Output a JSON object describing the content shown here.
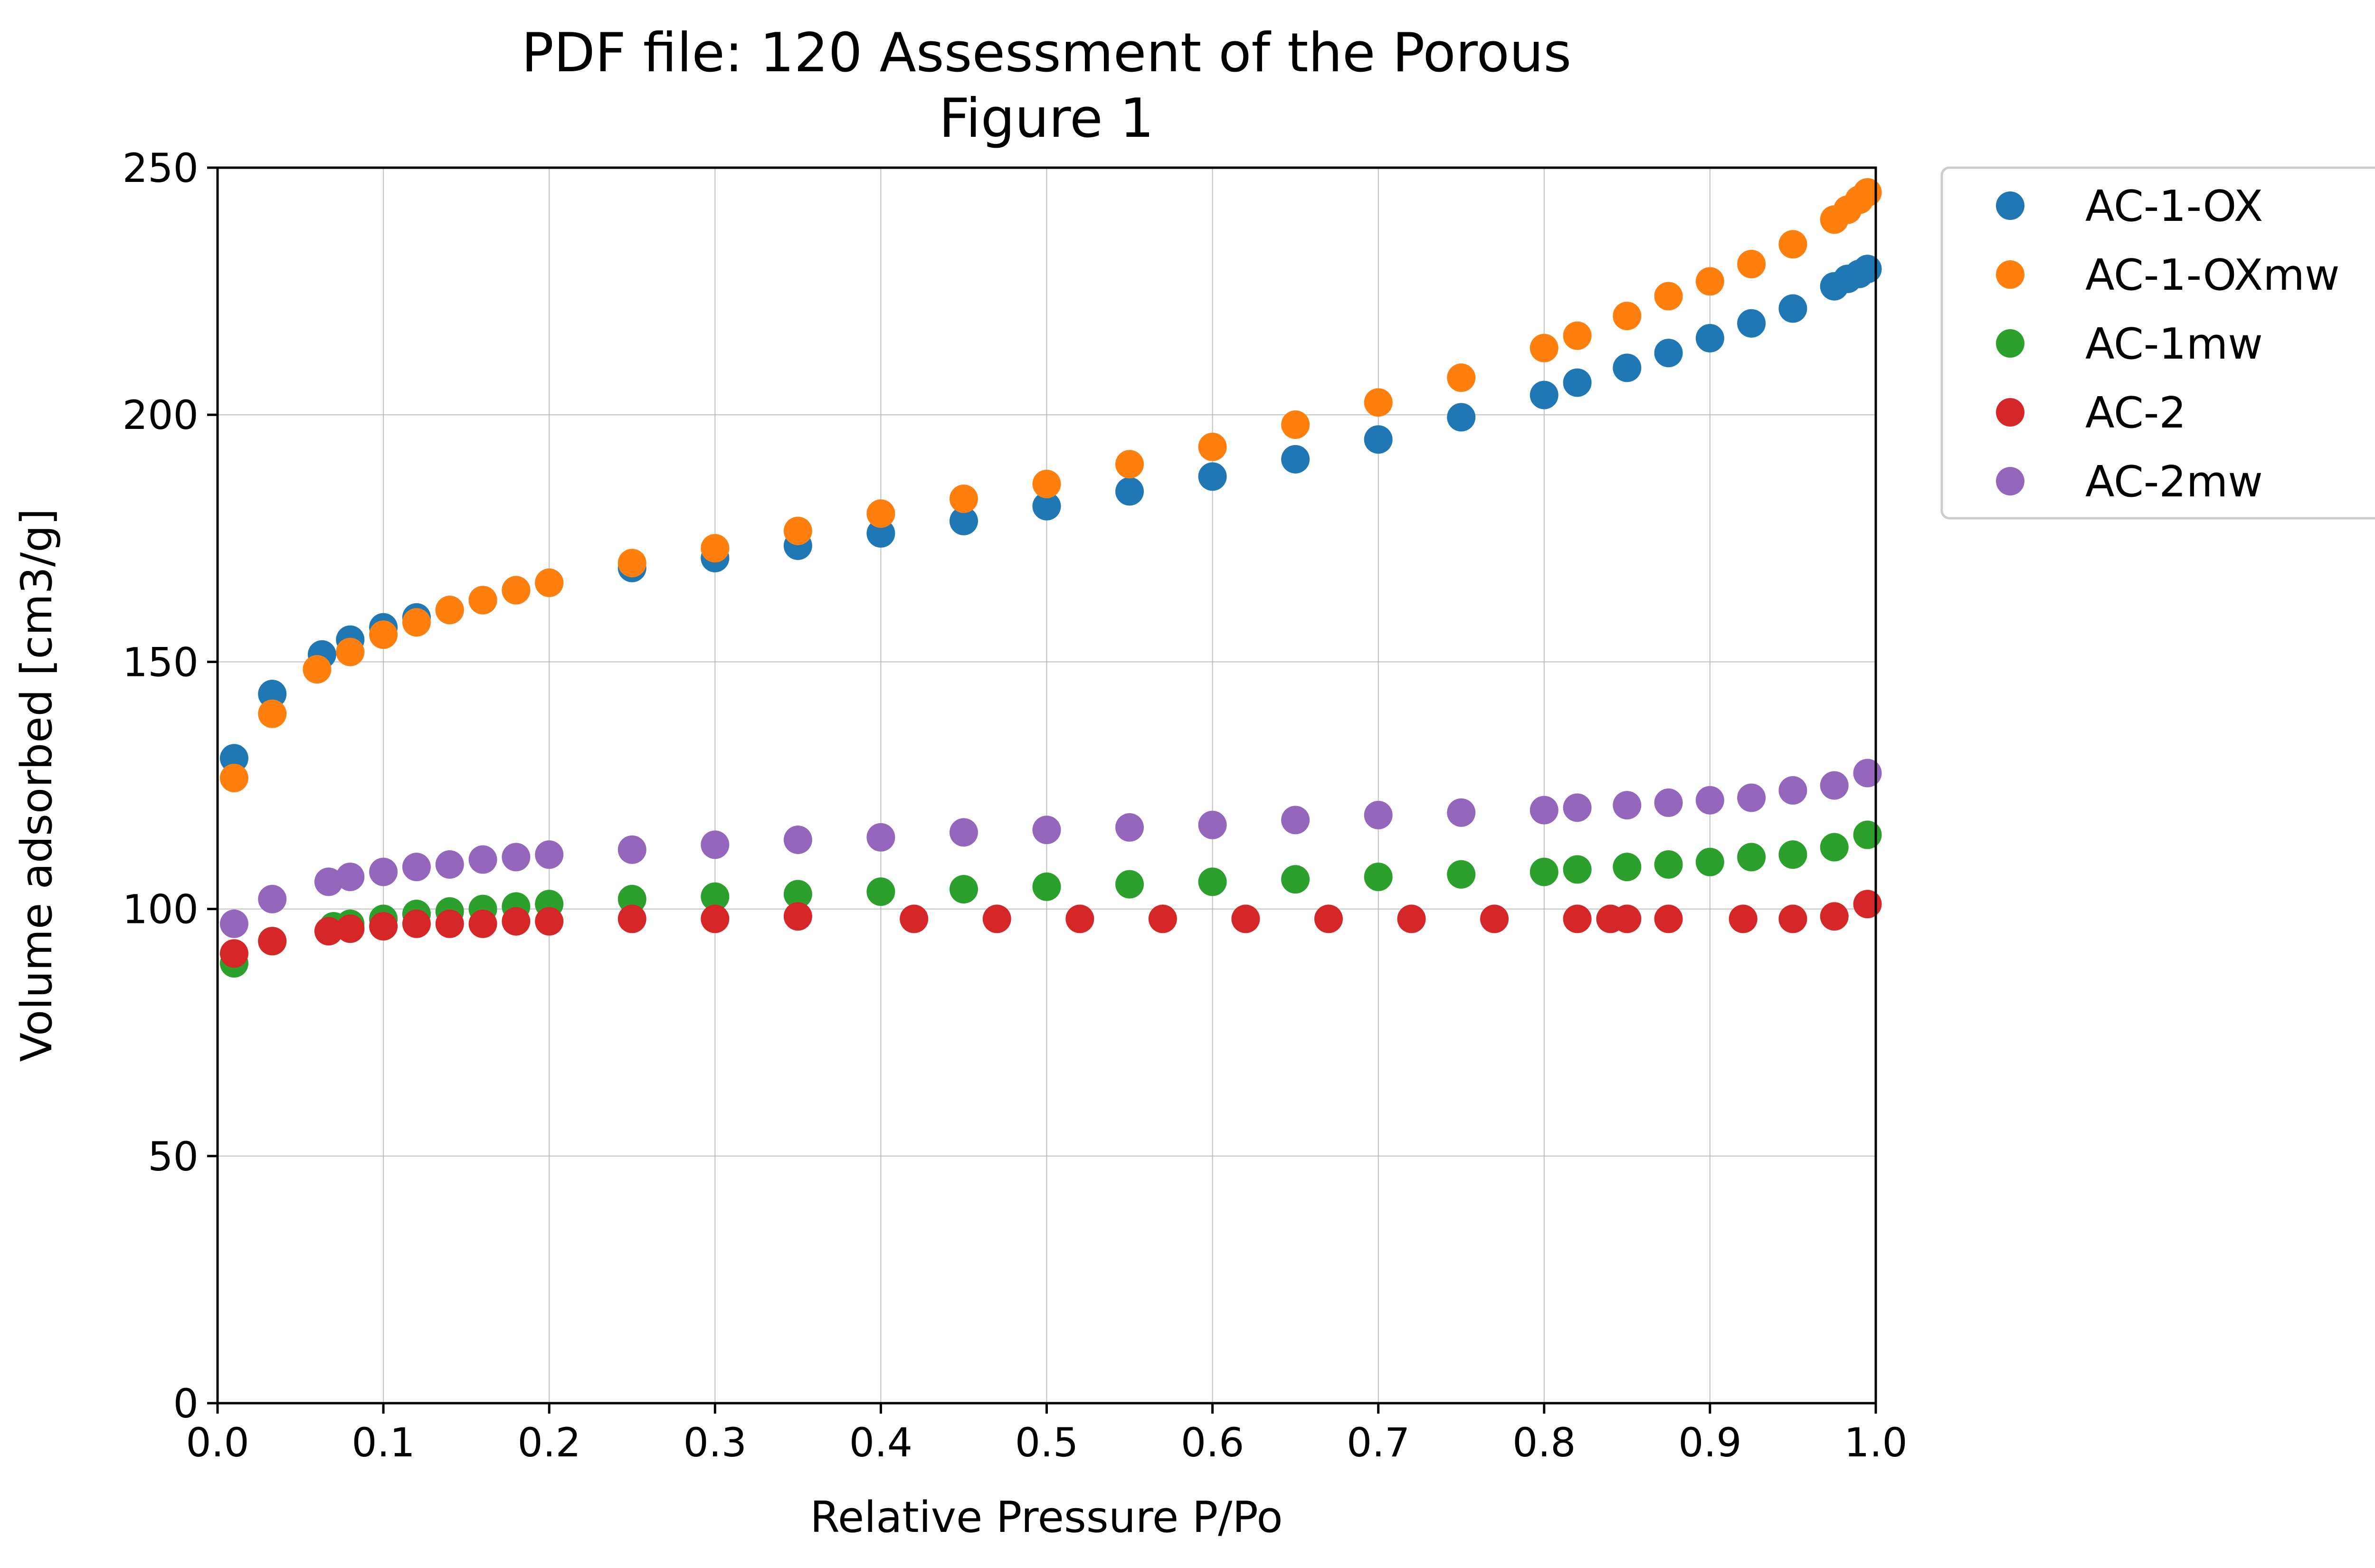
{
  "chart_data": {
    "type": "scatter",
    "title": "PDF file: 120 Assessment of the Porous",
    "subtitle": "Figure 1",
    "xlabel": "Relative Pressure P/Po",
    "ylabel": "Volume adsorbed [cm3/g]",
    "xlim": [
      0.0,
      1.0
    ],
    "ylim": [
      0,
      250
    ],
    "xticks": [
      "0.0",
      "0.1",
      "0.2",
      "0.3",
      "0.4",
      "0.5",
      "0.6",
      "0.7",
      "0.8",
      "0.9",
      "1.0"
    ],
    "yticks": [
      "0",
      "50",
      "100",
      "150",
      "200",
      "250"
    ],
    "grid": true,
    "legend_position": "outside-right",
    "series": [
      {
        "name": "AC-1-OX",
        "color": "#1f77b4",
        "points": [
          [
            0.01,
            130.5
          ],
          [
            0.033,
            143.5
          ],
          [
            0.063,
            151.5
          ],
          [
            0.08,
            154.5
          ],
          [
            0.1,
            157
          ],
          [
            0.12,
            159
          ],
          [
            0.14,
            160.5
          ],
          [
            0.16,
            162.5
          ],
          [
            0.18,
            164.5
          ],
          [
            0.2,
            166
          ],
          [
            0.25,
            169
          ],
          [
            0.3,
            171
          ],
          [
            0.35,
            173.5
          ],
          [
            0.4,
            176
          ],
          [
            0.45,
            178.5
          ],
          [
            0.5,
            181.5
          ],
          [
            0.55,
            184.5
          ],
          [
            0.6,
            187.5
          ],
          [
            0.65,
            191
          ],
          [
            0.7,
            195
          ],
          [
            0.75,
            199.5
          ],
          [
            0.8,
            204
          ],
          [
            0.82,
            206.5
          ],
          [
            0.85,
            209.5
          ],
          [
            0.875,
            212.5
          ],
          [
            0.9,
            215.5
          ],
          [
            0.925,
            218.5
          ],
          [
            0.95,
            221.5
          ],
          [
            0.975,
            226
          ],
          [
            0.983,
            227.5
          ],
          [
            0.99,
            228.5
          ],
          [
            0.995,
            229.5
          ]
        ]
      },
      {
        "name": "AC-1-OXmw",
        "color": "#ff7f0e",
        "points": [
          [
            0.01,
            126.5
          ],
          [
            0.033,
            139.5
          ],
          [
            0.06,
            148.5
          ],
          [
            0.08,
            152
          ],
          [
            0.1,
            155.5
          ],
          [
            0.12,
            158
          ],
          [
            0.14,
            160.5
          ],
          [
            0.16,
            162.5
          ],
          [
            0.18,
            164.5
          ],
          [
            0.2,
            166
          ],
          [
            0.25,
            170
          ],
          [
            0.3,
            173
          ],
          [
            0.35,
            176.5
          ],
          [
            0.4,
            180
          ],
          [
            0.45,
            183
          ],
          [
            0.5,
            186
          ],
          [
            0.55,
            190
          ],
          [
            0.6,
            193.5
          ],
          [
            0.65,
            198
          ],
          [
            0.7,
            202.5
          ],
          [
            0.75,
            207.5
          ],
          [
            0.8,
            213.5
          ],
          [
            0.82,
            216
          ],
          [
            0.85,
            220
          ],
          [
            0.875,
            224
          ],
          [
            0.9,
            227
          ],
          [
            0.925,
            230.5
          ],
          [
            0.95,
            234.5
          ],
          [
            0.975,
            239.5
          ],
          [
            0.983,
            241.5
          ],
          [
            0.99,
            243.5
          ],
          [
            0.995,
            245
          ]
        ]
      },
      {
        "name": "AC-1mw",
        "color": "#2ca02c",
        "points": [
          [
            0.01,
            89
          ],
          [
            0.033,
            93.5
          ],
          [
            0.07,
            96.5
          ],
          [
            0.08,
            97
          ],
          [
            0.1,
            98
          ],
          [
            0.12,
            99
          ],
          [
            0.14,
            99.5
          ],
          [
            0.16,
            100
          ],
          [
            0.18,
            100.5
          ],
          [
            0.2,
            101
          ],
          [
            0.25,
            102
          ],
          [
            0.3,
            102.5
          ],
          [
            0.35,
            103
          ],
          [
            0.4,
            103.5
          ],
          [
            0.45,
            104
          ],
          [
            0.5,
            104.5
          ],
          [
            0.55,
            105
          ],
          [
            0.6,
            105.5
          ],
          [
            0.65,
            106
          ],
          [
            0.7,
            106.5
          ],
          [
            0.75,
            107
          ],
          [
            0.8,
            107.5
          ],
          [
            0.82,
            108
          ],
          [
            0.85,
            108.5
          ],
          [
            0.875,
            109
          ],
          [
            0.9,
            109.5
          ],
          [
            0.925,
            110.5
          ],
          [
            0.95,
            111
          ],
          [
            0.975,
            112.5
          ],
          [
            0.995,
            115
          ]
        ]
      },
      {
        "name": "AC-2",
        "color": "#d62728",
        "points": [
          [
            0.01,
            91
          ],
          [
            0.033,
            93.5
          ],
          [
            0.067,
            95.5
          ],
          [
            0.08,
            96
          ],
          [
            0.1,
            96.5
          ],
          [
            0.12,
            97
          ],
          [
            0.14,
            97
          ],
          [
            0.16,
            97
          ],
          [
            0.18,
            97.5
          ],
          [
            0.2,
            97.5
          ],
          [
            0.25,
            98
          ],
          [
            0.3,
            98
          ],
          [
            0.35,
            98.5
          ],
          [
            0.42,
            98
          ],
          [
            0.47,
            98
          ],
          [
            0.52,
            98
          ],
          [
            0.57,
            98
          ],
          [
            0.62,
            98
          ],
          [
            0.67,
            98
          ],
          [
            0.72,
            98
          ],
          [
            0.77,
            98
          ],
          [
            0.82,
            98
          ],
          [
            0.84,
            98
          ],
          [
            0.85,
            98
          ],
          [
            0.875,
            98
          ],
          [
            0.92,
            98
          ],
          [
            0.95,
            98
          ],
          [
            0.975,
            98.5
          ],
          [
            0.995,
            101
          ]
        ]
      },
      {
        "name": "AC-2mw",
        "color": "#9467bd",
        "points": [
          [
            0.01,
            97
          ],
          [
            0.033,
            102
          ],
          [
            0.067,
            105.5
          ],
          [
            0.08,
            106.5
          ],
          [
            0.1,
            107.5
          ],
          [
            0.12,
            108.5
          ],
          [
            0.14,
            109
          ],
          [
            0.16,
            110
          ],
          [
            0.18,
            110.5
          ],
          [
            0.2,
            111
          ],
          [
            0.25,
            112
          ],
          [
            0.3,
            113
          ],
          [
            0.35,
            114
          ],
          [
            0.4,
            114.5
          ],
          [
            0.45,
            115.5
          ],
          [
            0.5,
            116
          ],
          [
            0.55,
            116.5
          ],
          [
            0.6,
            117
          ],
          [
            0.65,
            118
          ],
          [
            0.7,
            119
          ],
          [
            0.75,
            119.5
          ],
          [
            0.8,
            120
          ],
          [
            0.82,
            120.5
          ],
          [
            0.85,
            121
          ],
          [
            0.875,
            121.5
          ],
          [
            0.9,
            122
          ],
          [
            0.925,
            122.5
          ],
          [
            0.95,
            124
          ],
          [
            0.975,
            125
          ],
          [
            0.995,
            127.5
          ]
        ]
      }
    ]
  }
}
